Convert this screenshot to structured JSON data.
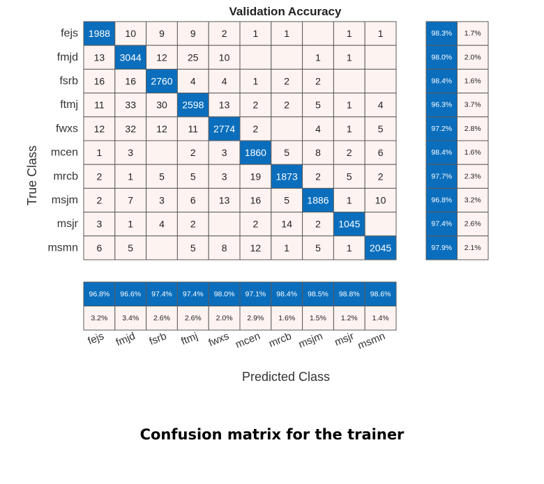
{
  "chart_data": {
    "type": "heatmap",
    "title": "Validation Accuracy",
    "xlabel": "Predicted Class",
    "ylabel": "True Class",
    "classes": [
      "fejs",
      "fmjd",
      "fsrb",
      "ftmj",
      "fwxs",
      "mcen",
      "mrcb",
      "msjm",
      "msjr",
      "msmn"
    ],
    "matrix": [
      [
        1988,
        10,
        9,
        9,
        2,
        1,
        1,
        null,
        1,
        1
      ],
      [
        13,
        3044,
        12,
        25,
        10,
        null,
        null,
        1,
        1,
        null
      ],
      [
        16,
        16,
        2760,
        4,
        4,
        1,
        2,
        2,
        null,
        null
      ],
      [
        11,
        33,
        30,
        2598,
        13,
        2,
        2,
        5,
        1,
        4
      ],
      [
        12,
        32,
        12,
        11,
        2774,
        2,
        null,
        4,
        1,
        5
      ],
      [
        1,
        3,
        null,
        2,
        3,
        1860,
        5,
        8,
        2,
        6
      ],
      [
        2,
        1,
        5,
        5,
        3,
        19,
        1873,
        2,
        5,
        2
      ],
      [
        2,
        7,
        3,
        6,
        13,
        16,
        5,
        1886,
        1,
        10
      ],
      [
        3,
        1,
        4,
        2,
        null,
        2,
        14,
        2,
        1045,
        null
      ],
      [
        6,
        5,
        null,
        5,
        8,
        12,
        1,
        5,
        1,
        2045
      ]
    ],
    "row_summary": {
      "correct": [
        "98.3%",
        "98.0%",
        "98.4%",
        "96.3%",
        "97.2%",
        "98.4%",
        "97.7%",
        "96.8%",
        "97.4%",
        "97.9%"
      ],
      "incorrect": [
        "1.7%",
        "2.0%",
        "1.6%",
        "3.7%",
        "2.8%",
        "1.6%",
        "2.3%",
        "3.2%",
        "2.6%",
        "2.1%"
      ]
    },
    "column_summary": {
      "correct": [
        "96.8%",
        "96.6%",
        "97.4%",
        "97.4%",
        "98.0%",
        "97.1%",
        "98.4%",
        "98.5%",
        "98.8%",
        "98.6%"
      ],
      "incorrect": [
        "3.2%",
        "3.4%",
        "2.6%",
        "2.6%",
        "2.0%",
        "2.9%",
        "1.6%",
        "1.5%",
        "1.2%",
        "1.4%"
      ]
    },
    "colors": {
      "diagonal": "#0a6ebd",
      "off_diagonal": "#fdf3f1",
      "summary_correct": "#0a6ebd",
      "summary_incorrect": "#fdf3f1",
      "grid": "#5a5a5a"
    }
  },
  "caption": "Confusion matrix for the trainer"
}
